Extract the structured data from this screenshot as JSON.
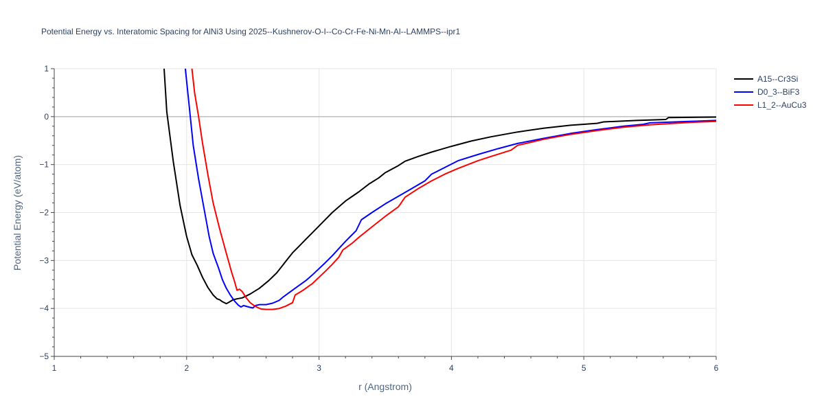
{
  "chart_data": {
    "type": "line",
    "title": "Potential Energy vs. Interatomic Spacing for AlNi3 Using 2025--Kushnerov-O-I--Co-Cr-Fe-Ni-Mn-Al--LAMMPS--ipr1",
    "xlabel": "r (Angstrom)",
    "ylabel": "Potential Energy (eV/atom)",
    "xlim": [
      1,
      6
    ],
    "ylim": [
      -5,
      1
    ],
    "xticks": [
      1,
      2,
      3,
      4,
      5,
      6
    ],
    "yticks": [
      1,
      0,
      -1,
      -2,
      -3,
      -4,
      -5
    ],
    "xtick_labels": [
      "1",
      "2",
      "3",
      "4",
      "5",
      "6"
    ],
    "ytick_labels": [
      "1",
      "0",
      "−1",
      "−2",
      "−3",
      "−4",
      "−5"
    ],
    "grid": true,
    "legend_position": "top-right",
    "series": [
      {
        "name": "A15--Cr3Si",
        "color": "#000000",
        "points": [
          [
            1.83,
            1.0
          ],
          [
            1.85,
            0.1
          ],
          [
            1.9,
            -0.95
          ],
          [
            1.95,
            -1.85
          ],
          [
            2.0,
            -2.5
          ],
          [
            2.04,
            -2.88
          ],
          [
            2.08,
            -3.1
          ],
          [
            2.12,
            -3.35
          ],
          [
            2.16,
            -3.56
          ],
          [
            2.2,
            -3.72
          ],
          [
            2.23,
            -3.8
          ],
          [
            2.25,
            -3.82
          ],
          [
            2.27,
            -3.86
          ],
          [
            2.3,
            -3.9
          ],
          [
            2.32,
            -3.87
          ],
          [
            2.35,
            -3.82
          ],
          [
            2.38,
            -3.8
          ],
          [
            2.42,
            -3.78
          ],
          [
            2.48,
            -3.7
          ],
          [
            2.55,
            -3.58
          ],
          [
            2.62,
            -3.42
          ],
          [
            2.68,
            -3.26
          ],
          [
            2.72,
            -3.12
          ],
          [
            2.76,
            -2.98
          ],
          [
            2.8,
            -2.84
          ],
          [
            2.85,
            -2.7
          ],
          [
            2.9,
            -2.56
          ],
          [
            2.95,
            -2.42
          ],
          [
            3.0,
            -2.28
          ],
          [
            3.05,
            -2.14
          ],
          [
            3.1,
            -2.0
          ],
          [
            3.15,
            -1.88
          ],
          [
            3.2,
            -1.76
          ],
          [
            3.3,
            -1.57
          ],
          [
            3.38,
            -1.4
          ],
          [
            3.45,
            -1.28
          ],
          [
            3.5,
            -1.17
          ],
          [
            3.6,
            -1.02
          ],
          [
            3.65,
            -0.93
          ],
          [
            3.75,
            -0.83
          ],
          [
            3.85,
            -0.74
          ],
          [
            4.0,
            -0.62
          ],
          [
            4.15,
            -0.51
          ],
          [
            4.3,
            -0.42
          ],
          [
            4.5,
            -0.32
          ],
          [
            4.7,
            -0.24
          ],
          [
            4.9,
            -0.18
          ],
          [
            5.1,
            -0.14
          ],
          [
            5.15,
            -0.11
          ],
          [
            5.4,
            -0.08
          ],
          [
            5.62,
            -0.06
          ],
          [
            5.64,
            -0.02
          ],
          [
            6.0,
            -0.01
          ]
        ]
      },
      {
        "name": "D0_3--BiF3",
        "color": "#0000ff",
        "points": [
          [
            1.99,
            1.0
          ],
          [
            2.02,
            0.2
          ],
          [
            2.05,
            -0.6
          ],
          [
            2.09,
            -1.3
          ],
          [
            2.13,
            -1.9
          ],
          [
            2.17,
            -2.5
          ],
          [
            2.2,
            -2.85
          ],
          [
            2.22,
            -3.0
          ],
          [
            2.24,
            -3.15
          ],
          [
            2.27,
            -3.4
          ],
          [
            2.3,
            -3.58
          ],
          [
            2.33,
            -3.72
          ],
          [
            2.36,
            -3.84
          ],
          [
            2.39,
            -3.93
          ],
          [
            2.41,
            -3.97
          ],
          [
            2.43,
            -3.94
          ],
          [
            2.47,
            -3.97
          ],
          [
            2.5,
            -3.99
          ],
          [
            2.52,
            -3.94
          ],
          [
            2.55,
            -3.92
          ],
          [
            2.6,
            -3.92
          ],
          [
            2.65,
            -3.89
          ],
          [
            2.7,
            -3.83
          ],
          [
            2.73,
            -3.76
          ],
          [
            2.8,
            -3.62
          ],
          [
            2.85,
            -3.52
          ],
          [
            2.9,
            -3.42
          ],
          [
            2.95,
            -3.3
          ],
          [
            3.0,
            -3.17
          ],
          [
            3.05,
            -3.04
          ],
          [
            3.1,
            -2.9
          ],
          [
            3.15,
            -2.75
          ],
          [
            3.2,
            -2.6
          ],
          [
            3.28,
            -2.38
          ],
          [
            3.32,
            -2.15
          ],
          [
            3.4,
            -2.0
          ],
          [
            3.5,
            -1.82
          ],
          [
            3.6,
            -1.66
          ],
          [
            3.7,
            -1.5
          ],
          [
            3.8,
            -1.34
          ],
          [
            3.85,
            -1.2
          ],
          [
            3.95,
            -1.06
          ],
          [
            4.05,
            -0.92
          ],
          [
            4.2,
            -0.79
          ],
          [
            4.35,
            -0.67
          ],
          [
            4.5,
            -0.56
          ],
          [
            4.7,
            -0.45
          ],
          [
            4.9,
            -0.35
          ],
          [
            5.1,
            -0.27
          ],
          [
            5.3,
            -0.2
          ],
          [
            5.45,
            -0.16
          ],
          [
            5.5,
            -0.13
          ],
          [
            5.8,
            -0.1
          ],
          [
            6.0,
            -0.08
          ]
        ]
      },
      {
        "name": "L1_2--AuCu3",
        "color": "#ff0000",
        "points": [
          [
            2.04,
            1.0
          ],
          [
            2.06,
            0.5
          ],
          [
            2.09,
            0.0
          ],
          [
            2.12,
            -0.55
          ],
          [
            2.16,
            -1.2
          ],
          [
            2.2,
            -1.8
          ],
          [
            2.25,
            -2.35
          ],
          [
            2.3,
            -2.85
          ],
          [
            2.34,
            -3.25
          ],
          [
            2.36,
            -3.42
          ],
          [
            2.38,
            -3.62
          ],
          [
            2.4,
            -3.6
          ],
          [
            2.42,
            -3.65
          ],
          [
            2.45,
            -3.78
          ],
          [
            2.48,
            -3.88
          ],
          [
            2.52,
            -3.96
          ],
          [
            2.56,
            -4.01
          ],
          [
            2.6,
            -4.02
          ],
          [
            2.65,
            -4.02
          ],
          [
            2.7,
            -4.0
          ],
          [
            2.75,
            -3.95
          ],
          [
            2.8,
            -3.88
          ],
          [
            2.82,
            -3.72
          ],
          [
            2.88,
            -3.62
          ],
          [
            2.95,
            -3.48
          ],
          [
            3.0,
            -3.35
          ],
          [
            3.05,
            -3.22
          ],
          [
            3.1,
            -3.08
          ],
          [
            3.15,
            -2.93
          ],
          [
            3.18,
            -2.78
          ],
          [
            3.25,
            -2.64
          ],
          [
            3.3,
            -2.52
          ],
          [
            3.4,
            -2.3
          ],
          [
            3.5,
            -2.08
          ],
          [
            3.6,
            -1.88
          ],
          [
            3.65,
            -1.68
          ],
          [
            3.75,
            -1.5
          ],
          [
            3.85,
            -1.34
          ],
          [
            3.95,
            -1.2
          ],
          [
            4.05,
            -1.08
          ],
          [
            4.2,
            -0.92
          ],
          [
            4.3,
            -0.83
          ],
          [
            4.45,
            -0.7
          ],
          [
            4.5,
            -0.6
          ],
          [
            4.7,
            -0.47
          ],
          [
            4.9,
            -0.37
          ],
          [
            5.1,
            -0.29
          ],
          [
            5.3,
            -0.22
          ],
          [
            5.5,
            -0.17
          ],
          [
            5.8,
            -0.12
          ],
          [
            6.0,
            -0.1
          ]
        ]
      }
    ]
  }
}
